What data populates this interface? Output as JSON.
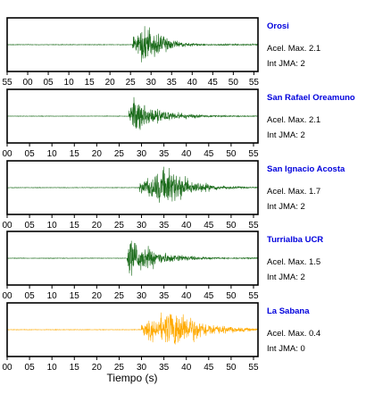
{
  "chart_data": {
    "type": "line",
    "xlabel": "Tiempo (s)",
    "xlim": [
      0,
      56
    ],
    "x_ticks": [
      "00",
      "05",
      "10",
      "15",
      "20",
      "25",
      "30",
      "35",
      "40",
      "45",
      "50",
      "55"
    ],
    "first_panel_x_ticks": [
      "55",
      "00",
      "05",
      "10",
      "15",
      "20",
      "25",
      "30",
      "35",
      "40",
      "45",
      "50",
      "55"
    ],
    "panels": [
      {
        "station": "Orosi",
        "accel_label": "Acel. Max.",
        "accel_value": "2.1",
        "jma_label": "Int JMA:",
        "jma_value": "2",
        "color": "#1a6b1a",
        "onset_s": 25.5,
        "peak_s": 28.5,
        "duration_s": 16,
        "peak_amplitude": 1.0
      },
      {
        "station": "San Rafael Oreamuno",
        "accel_label": "Acel. Max.",
        "accel_value": "2.1",
        "jma_label": "Int JMA:",
        "jma_value": "2",
        "color": "#1a6b1a",
        "onset_s": 27.2,
        "peak_s": 28.2,
        "duration_s": 22,
        "peak_amplitude": 0.85
      },
      {
        "station": "San Ignacio Acosta",
        "accel_label": "Acel. Max.",
        "accel_value": "1.7",
        "jma_label": "Int JMA:",
        "jma_value": "2",
        "color": "#1a6b1a",
        "onset_s": 29.5,
        "peak_s": 36.2,
        "duration_s": 18,
        "peak_amplitude": 1.0
      },
      {
        "station": "Turrialba UCR",
        "accel_label": "Acel. Max.",
        "accel_value": "1.5",
        "jma_label": "Int JMA:",
        "jma_value": "2",
        "color": "#1a6b1a",
        "onset_s": 26.8,
        "peak_s": 27.2,
        "duration_s": 22,
        "peak_amplitude": 1.0
      },
      {
        "station": "La Sabana",
        "accel_label": "Acel. Max.",
        "accel_value": "0.4",
        "jma_label": "Int JMA:",
        "jma_value": "0",
        "color": "#ffaa00",
        "onset_s": 30.0,
        "peak_s": 38.0,
        "duration_s": 22,
        "peak_amplitude": 1.0
      }
    ]
  }
}
